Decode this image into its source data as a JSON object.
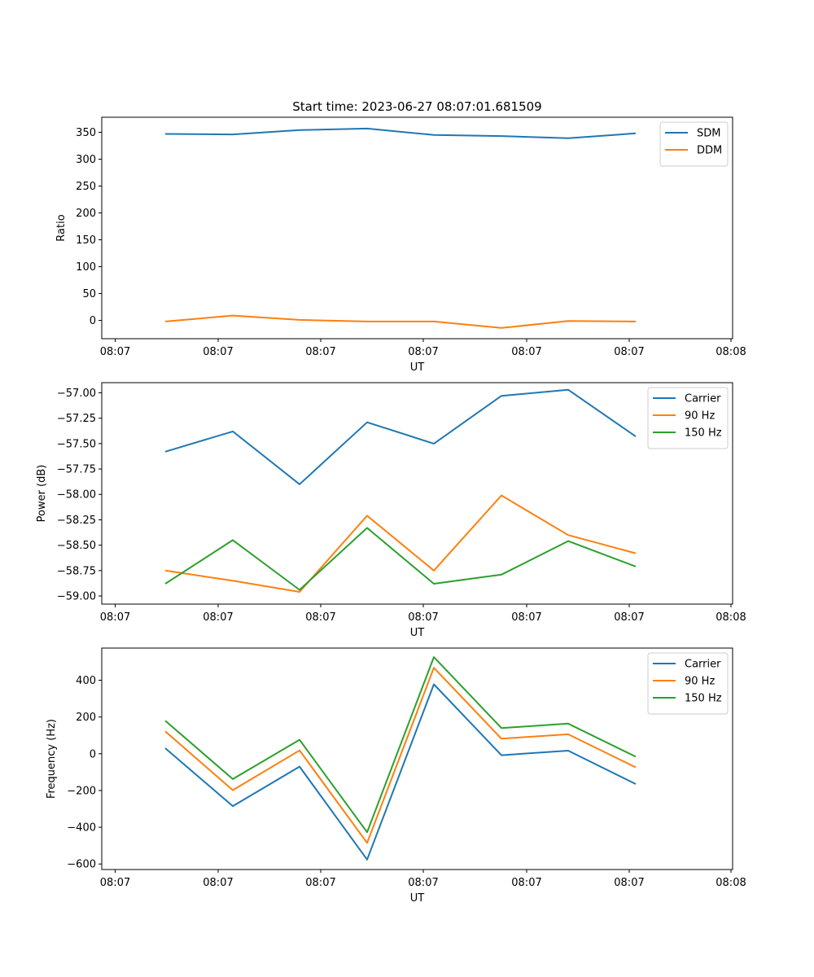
{
  "title": "Start time: 2023-06-27 08:07:01.681509",
  "colors": {
    "blue": "#1f77b4",
    "orange": "#ff7f0e",
    "green": "#2ca02c"
  },
  "chart_data": [
    {
      "type": "line",
      "xlabel": "UT",
      "ylabel": "Ratio",
      "x_tick_labels": [
        "08:07",
        "08:07",
        "08:07",
        "08:07",
        "08:07",
        "08:07",
        "08:08"
      ],
      "y_ticks": [
        0,
        50,
        100,
        150,
        200,
        250,
        300,
        350
      ],
      "y_tick_labels": [
        "0",
        "50",
        "100",
        "150",
        "200",
        "250",
        "300",
        "350"
      ],
      "ylim": [
        -34,
        378
      ],
      "legend_position": "top-right",
      "series": [
        {
          "name": "SDM",
          "color": "#1f77b4",
          "values": [
            347,
            346,
            354,
            357,
            345,
            343,
            339,
            348
          ]
        },
        {
          "name": "DDM",
          "color": "#ff7f0e",
          "values": [
            -2,
            9,
            1,
            -2,
            -2,
            -14,
            -1,
            -2
          ]
        }
      ]
    },
    {
      "type": "line",
      "xlabel": "UT",
      "ylabel": "Power (dB)",
      "x_tick_labels": [
        "08:07",
        "08:07",
        "08:07",
        "08:07",
        "08:07",
        "08:07",
        "08:08"
      ],
      "y_ticks": [
        -59.0,
        -58.75,
        -58.5,
        -58.25,
        -58.0,
        -57.75,
        -57.5,
        -57.25,
        -57.0
      ],
      "y_tick_labels": [
        "−59.00",
        "−58.75",
        "−58.50",
        "−58.25",
        "−58.00",
        "−57.75",
        "−57.50",
        "−57.25",
        "−57.00"
      ],
      "ylim": [
        -59.08,
        -56.9
      ],
      "legend_position": "top-right",
      "series": [
        {
          "name": "Carrier",
          "color": "#1f77b4",
          "values": [
            -57.58,
            -57.38,
            -57.9,
            -57.29,
            -57.5,
            -57.03,
            -56.97,
            -57.43
          ]
        },
        {
          "name": "90 Hz",
          "color": "#ff7f0e",
          "values": [
            -58.75,
            -58.85,
            -58.96,
            -58.21,
            -58.75,
            -58.01,
            -58.4,
            -58.58
          ]
        },
        {
          "name": "150 Hz",
          "color": "#2ca02c",
          "values": [
            -58.88,
            -58.45,
            -58.94,
            -58.33,
            -58.88,
            -58.79,
            -58.46,
            -58.71
          ]
        }
      ]
    },
    {
      "type": "line",
      "xlabel": "UT",
      "ylabel": "Frequency (Hz)",
      "x_tick_labels": [
        "08:07",
        "08:07",
        "08:07",
        "08:07",
        "08:07",
        "08:07",
        "08:08"
      ],
      "y_ticks": [
        -600,
        -400,
        -200,
        0,
        200,
        400
      ],
      "y_tick_labels": [
        "−600",
        "−400",
        "−200",
        "0",
        "200",
        "400"
      ],
      "ylim": [
        -630,
        575
      ],
      "legend_position": "top-right",
      "series": [
        {
          "name": "Carrier",
          "color": "#1f77b4",
          "values": [
            30,
            -285,
            -70,
            -576,
            378,
            -8,
            17,
            -165
          ]
        },
        {
          "name": "90 Hz",
          "color": "#ff7f0e",
          "values": [
            122,
            -198,
            18,
            -485,
            468,
            82,
            106,
            -74
          ]
        },
        {
          "name": "150 Hz",
          "color": "#2ca02c",
          "values": [
            180,
            -138,
            76,
            -427,
            526,
            140,
            164,
            -16
          ]
        }
      ]
    }
  ]
}
